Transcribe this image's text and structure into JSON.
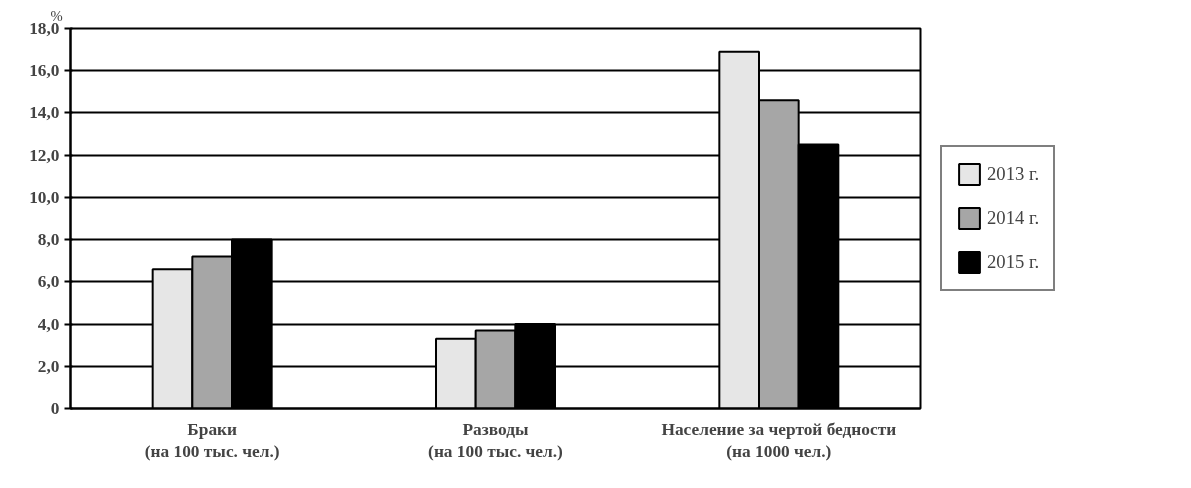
{
  "chart_data": {
    "type": "bar",
    "ylabel": "%",
    "categories": [
      "Браки\n(на 100 тыс. чел.)",
      "Разводы\n(на 100 тыс. чел.)",
      "Население за чертой бедности\n(на 1000 чел.)"
    ],
    "series": [
      {
        "name": "2013 г.",
        "color": "#e6e6e6",
        "values": [
          6.6,
          3.3,
          16.9
        ]
      },
      {
        "name": "2014 г.",
        "color": "#a6a6a6",
        "values": [
          7.2,
          3.7,
          14.6
        ]
      },
      {
        "name": "2015 г.",
        "color": "#000000",
        "values": [
          8.0,
          4.0,
          12.5
        ]
      }
    ],
    "ylim": [
      0,
      18
    ],
    "yticks": [
      0,
      {
        "value": 2,
        "label": "2,0"
      },
      {
        "value": 4,
        "label": "4,0"
      },
      {
        "value": 6,
        "label": "6,0"
      },
      {
        "value": 8,
        "label": "8,0"
      },
      {
        "value": 10,
        "label": "10,0"
      },
      {
        "value": 12,
        "label": "12,0"
      },
      {
        "value": 14,
        "label": "14,0"
      },
      {
        "value": 16,
        "label": "16,0"
      },
      {
        "value": 18,
        "label": "18,0"
      }
    ],
    "grid": "y",
    "legend": "right"
  }
}
